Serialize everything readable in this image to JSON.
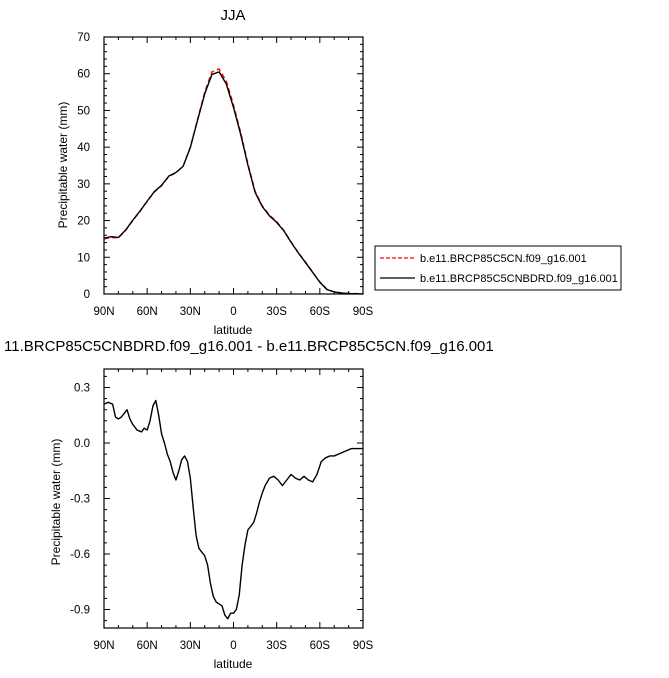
{
  "chart_data": [
    {
      "type": "line",
      "title": "JJA",
      "xlabel": "latitude",
      "ylabel": "Precipitable water (mm)",
      "xlim": [
        90,
        -90
      ],
      "ylim": [
        0,
        70
      ],
      "xticks": [
        90,
        60,
        30,
        0,
        -30,
        -60,
        -90
      ],
      "xticklabels": [
        "90N",
        "60N",
        "30N",
        "0",
        "30S",
        "60S",
        "90S"
      ],
      "yticks": [
        0,
        10,
        20,
        30,
        40,
        50,
        60,
        70
      ],
      "yticklabels": [
        "0",
        "10",
        "20",
        "30",
        "40",
        "50",
        "60",
        "70"
      ],
      "legend_position": "right",
      "series": [
        {
          "name": "b.e11.BRCP85C5CN.f09_g16.001",
          "color": "#ff0000",
          "dash": "dashed",
          "x": [
            90,
            85,
            80,
            75,
            70,
            65,
            60,
            55,
            50,
            45,
            40,
            35,
            30,
            25,
            20,
            15,
            10,
            5,
            0,
            -5,
            -10,
            -15,
            -20,
            -25,
            -30,
            -35,
            -40,
            -45,
            -50,
            -55,
            -60,
            -65,
            -70,
            -75,
            -80,
            -85,
            -90
          ],
          "y": [
            15.0,
            15.4,
            15.3,
            17.3,
            20.0,
            22.5,
            25.2,
            27.8,
            29.5,
            32.0,
            33.0,
            34.8,
            40.0,
            47.5,
            55.0,
            60.5,
            61.3,
            58.0,
            51.5,
            44.0,
            35.5,
            28.0,
            24.0,
            21.5,
            19.7,
            17.3,
            14.2,
            11.3,
            8.7,
            6.0,
            3.3,
            1.3,
            0.6,
            0.3,
            0.15,
            0.1,
            0.05
          ]
        },
        {
          "name": "b.e11.BRCP85C5CNBDRD.f09_g16.001",
          "color": "#000000",
          "dash": "solid",
          "x": [
            90,
            85,
            80,
            75,
            70,
            65,
            60,
            55,
            50,
            45,
            40,
            35,
            30,
            25,
            20,
            15,
            10,
            5,
            0,
            -5,
            -10,
            -15,
            -20,
            -25,
            -30,
            -35,
            -40,
            -45,
            -50,
            -55,
            -60,
            -65,
            -70,
            -75,
            -80,
            -85,
            -90
          ],
          "y": [
            15.2,
            15.6,
            15.4,
            17.4,
            20.1,
            22.6,
            25.3,
            27.9,
            29.6,
            32.1,
            33.1,
            34.8,
            39.9,
            47.3,
            54.5,
            59.8,
            60.5,
            57.2,
            50.8,
            43.5,
            35.1,
            27.7,
            23.8,
            21.3,
            19.5,
            17.2,
            14.1,
            11.2,
            8.6,
            5.9,
            3.2,
            1.2,
            0.55,
            0.25,
            0.12,
            0.08,
            0.03
          ]
        }
      ]
    },
    {
      "type": "line",
      "title": "11.BRCP85C5CNBDRD.f09_g16.001 - b.e11.BRCP85C5CN.f09_g16.001",
      "xlabel": "latitude",
      "ylabel": "Precipitable water (mm)",
      "xlim": [
        90,
        -90
      ],
      "ylim": [
        -1.0,
        0.4
      ],
      "xticks": [
        90,
        60,
        30,
        0,
        -30,
        -60,
        -90
      ],
      "xticklabels": [
        "90N",
        "60N",
        "30N",
        "0",
        "30S",
        "60S",
        "90S"
      ],
      "yticks": [
        0.3,
        0.0,
        -0.3,
        -0.6,
        -0.9
      ],
      "yticklabels": [
        "0.3",
        "0.0",
        "-0.3",
        "-0.6",
        "-0.9"
      ],
      "series": [
        {
          "name": "",
          "color": "#000000",
          "dash": "solid",
          "x": [
            90,
            87,
            84,
            82,
            80,
            78,
            76,
            74,
            72,
            70,
            67,
            64,
            62,
            60,
            58,
            56,
            54,
            52,
            50,
            48,
            46,
            44,
            42,
            40,
            38,
            36,
            34,
            32,
            30,
            28,
            26,
            24,
            22,
            20,
            18,
            16,
            14,
            12,
            10,
            8,
            6,
            4,
            2,
            0,
            -2,
            -4,
            -6,
            -8,
            -10,
            -12,
            -14,
            -16,
            -18,
            -20,
            -22,
            -25,
            -28,
            -31,
            -34,
            -37,
            -40,
            -43,
            -46,
            -49,
            -52,
            -55,
            -58,
            -61,
            -64,
            -67,
            -70,
            -73,
            -76,
            -79,
            -82,
            -85,
            -88,
            -90
          ],
          "y": [
            0.21,
            0.22,
            0.21,
            0.14,
            0.13,
            0.14,
            0.16,
            0.18,
            0.13,
            0.1,
            0.07,
            0.06,
            0.08,
            0.07,
            0.12,
            0.2,
            0.23,
            0.15,
            0.05,
            0.0,
            -0.06,
            -0.1,
            -0.16,
            -0.2,
            -0.15,
            -0.09,
            -0.07,
            -0.1,
            -0.19,
            -0.35,
            -0.5,
            -0.57,
            -0.59,
            -0.61,
            -0.66,
            -0.76,
            -0.83,
            -0.86,
            -0.87,
            -0.88,
            -0.93,
            -0.95,
            -0.92,
            -0.92,
            -0.9,
            -0.82,
            -0.66,
            -0.55,
            -0.47,
            -0.45,
            -0.43,
            -0.38,
            -0.32,
            -0.27,
            -0.23,
            -0.19,
            -0.18,
            -0.2,
            -0.23,
            -0.2,
            -0.17,
            -0.19,
            -0.2,
            -0.18,
            -0.2,
            -0.21,
            -0.17,
            -0.1,
            -0.08,
            -0.07,
            -0.07,
            -0.06,
            -0.05,
            -0.04,
            -0.03,
            -0.03,
            -0.03,
            -0.03
          ]
        }
      ]
    }
  ]
}
